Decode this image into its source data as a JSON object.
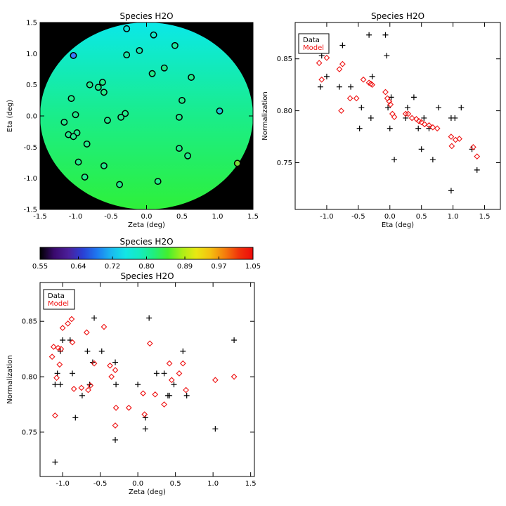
{
  "chart_data": [
    {
      "id": "map",
      "type": "scatter",
      "title": "Species H2O",
      "xlabel": "Zeta (deg)",
      "ylabel": "Eta (deg)",
      "xlim": [
        -1.5,
        1.5
      ],
      "ylim": [
        -1.5,
        1.5
      ],
      "xticks": [
        "-1.5",
        "-1.0",
        "-0.5",
        "0.0",
        "0.5",
        "1.0",
        "1.5"
      ],
      "yticks": [
        "-1.5",
        "-1.0",
        "-0.5",
        "0.0",
        "0.5",
        "1.0",
        "1.5"
      ],
      "background_color": "#000000",
      "field_radius": 1.5,
      "field_color_top": "#0be8e8",
      "field_color_bottom": "#2ef03a",
      "points": [
        [
          -1.03,
          0.97,
          "#3a7cff"
        ],
        [
          -0.28,
          1.4,
          "#14e5d9"
        ],
        [
          0.1,
          1.3,
          "#14e8c8"
        ],
        [
          -0.1,
          1.05,
          "#19e9b0"
        ],
        [
          0.4,
          1.13,
          "#1bea9e"
        ],
        [
          -0.28,
          0.98,
          "#1ce9a8"
        ],
        [
          0.08,
          0.68,
          "#22eb8a"
        ],
        [
          0.25,
          0.77,
          "#22eb8a"
        ],
        [
          0.63,
          0.62,
          "#22eb8a"
        ],
        [
          -0.62,
          0.54,
          "#22eb8a"
        ],
        [
          -0.68,
          0.46,
          "#22eb8a"
        ],
        [
          -0.8,
          0.5,
          "#22eb8a"
        ],
        [
          -0.6,
          0.38,
          "#22eb8a"
        ],
        [
          -1.06,
          0.28,
          "#22eb8a"
        ],
        [
          0.5,
          0.25,
          "#22eb8a"
        ],
        [
          1.03,
          0.08,
          "#1dc4d4"
        ],
        [
          -1.0,
          0.02,
          "#22eb8a"
        ],
        [
          -0.3,
          0.04,
          "#22eb8a"
        ],
        [
          -0.36,
          -0.02,
          "#22eb8a"
        ],
        [
          0.46,
          -0.02,
          "#22eb8a"
        ],
        [
          -0.55,
          -0.07,
          "#22eb8a"
        ],
        [
          -1.16,
          -0.1,
          "#22eb8a"
        ],
        [
          -0.98,
          -0.27,
          "#22eb8a"
        ],
        [
          -1.1,
          -0.3,
          "#22eb8a"
        ],
        [
          -1.03,
          -0.33,
          "#22eb8a"
        ],
        [
          -0.84,
          -0.45,
          "#22eb8a"
        ],
        [
          0.46,
          -0.52,
          "#22eb8a"
        ],
        [
          0.58,
          -0.64,
          "#22eb8a"
        ],
        [
          -0.96,
          -0.74,
          "#22eb8a"
        ],
        [
          -0.6,
          -0.8,
          "#22eb8a"
        ],
        [
          1.28,
          -0.76,
          "#7ad93a"
        ],
        [
          -0.87,
          -0.98,
          "#22eb8a"
        ],
        [
          0.16,
          -1.05,
          "#22eb8a"
        ],
        [
          -0.38,
          -1.1,
          "#22eb8a"
        ]
      ]
    },
    {
      "id": "colorbar",
      "type": "heatmap",
      "title": "Species H2O",
      "range": [
        0.55,
        1.05
      ],
      "tick_labels": [
        "0.55",
        "0.64",
        "0.72",
        "0.80",
        "0.89",
        "0.97",
        "1.05"
      ],
      "colors": [
        "#000000",
        "#3a0a6e",
        "#4b1f9a",
        "#2a3fd4",
        "#1e78f0",
        "#1ab8f0",
        "#12e6e6",
        "#14ecc0",
        "#20ee7e",
        "#44ee2e",
        "#aaee18",
        "#e8e812",
        "#f4c010",
        "#f47e0c",
        "#f0340a",
        "#ee0a0a"
      ]
    },
    {
      "id": "eta",
      "type": "scatter",
      "title": "Species H2O",
      "xlabel": "Eta (deg)",
      "ylabel": "Normalization",
      "xlim": [
        -1.5,
        1.75
      ],
      "ylim": [
        0.705,
        0.885
      ],
      "xticks": [
        "-1.0",
        "-0.5",
        "0.0",
        "0.5",
        "1.0",
        "1.5"
      ],
      "yticks": [
        "0.75",
        "0.80",
        "0.85"
      ],
      "legend": [
        "Data",
        "Model"
      ],
      "legend_position": "top-left",
      "series": [
        {
          "name": "Data",
          "marker": "plus",
          "color": "#000000",
          "points": [
            [
              -1.1,
              0.823
            ],
            [
              -1.08,
              0.853
            ],
            [
              -1.0,
              0.833
            ],
            [
              -0.8,
              0.823
            ],
            [
              -0.75,
              0.863
            ],
            [
              -0.62,
              0.823
            ],
            [
              -0.45,
              0.803
            ],
            [
              -0.48,
              0.783
            ],
            [
              -0.33,
              0.873
            ],
            [
              -0.3,
              0.793
            ],
            [
              -0.28,
              0.833
            ],
            [
              -0.07,
              0.873
            ],
            [
              -0.05,
              0.853
            ],
            [
              -0.03,
              0.803
            ],
            [
              0.02,
              0.813
            ],
            [
              0.0,
              0.783
            ],
            [
              0.07,
              0.753
            ],
            [
              0.28,
              0.803
            ],
            [
              0.25,
              0.793
            ],
            [
              0.38,
              0.813
            ],
            [
              0.45,
              0.783
            ],
            [
              0.5,
              0.763
            ],
            [
              0.54,
              0.793
            ],
            [
              0.62,
              0.783
            ],
            [
              0.68,
              0.753
            ],
            [
              0.77,
              0.803
            ],
            [
              0.97,
              0.793
            ],
            [
              1.03,
              0.793
            ],
            [
              1.13,
              0.803
            ],
            [
              0.97,
              0.723
            ],
            [
              1.3,
              0.763
            ],
            [
              1.38,
              0.743
            ]
          ]
        },
        {
          "name": "Model",
          "marker": "diamond",
          "color": "#ee1111",
          "points": [
            [
              -1.12,
              0.846
            ],
            [
              -1.08,
              0.83
            ],
            [
              -1.0,
              0.851
            ],
            [
              -0.8,
              0.84
            ],
            [
              -0.75,
              0.845
            ],
            [
              -0.77,
              0.8
            ],
            [
              -0.63,
              0.812
            ],
            [
              -0.53,
              0.812
            ],
            [
              -0.42,
              0.83
            ],
            [
              -0.33,
              0.827
            ],
            [
              -0.28,
              0.825
            ],
            [
              -0.3,
              0.826
            ],
            [
              -0.07,
              0.818
            ],
            [
              -0.04,
              0.812
            ],
            [
              -0.01,
              0.809
            ],
            [
              0.01,
              0.806
            ],
            [
              0.04,
              0.797
            ],
            [
              0.07,
              0.794
            ],
            [
              0.25,
              0.797
            ],
            [
              0.29,
              0.797
            ],
            [
              0.35,
              0.793
            ],
            [
              0.42,
              0.792
            ],
            [
              0.46,
              0.79
            ],
            [
              0.5,
              0.789
            ],
            [
              0.55,
              0.787
            ],
            [
              0.62,
              0.786
            ],
            [
              0.68,
              0.784
            ],
            [
              0.75,
              0.783
            ],
            [
              0.97,
              0.775
            ],
            [
              0.98,
              0.766
            ],
            [
              1.04,
              0.772
            ],
            [
              1.1,
              0.773
            ],
            [
              1.32,
              0.765
            ],
            [
              1.38,
              0.756
            ]
          ]
        }
      ]
    },
    {
      "id": "zeta",
      "type": "scatter",
      "title": "Species H2O",
      "xlabel": "Zeta (deg)",
      "ylabel": "Normalization",
      "xlim": [
        -1.3,
        1.55
      ],
      "ylim": [
        0.71,
        0.885
      ],
      "xticks": [
        "-1.0",
        "-0.5",
        "0.0",
        "0.5",
        "1.0",
        "1.5"
      ],
      "yticks": [
        "0.75",
        "0.80",
        "0.85"
      ],
      "legend": [
        "Data",
        "Model"
      ],
      "legend_position": "top-left",
      "series": [
        {
          "name": "Data",
          "marker": "plus",
          "color": "#000000",
          "points": [
            [
              -1.1,
              0.723
            ],
            [
              -1.1,
              0.793
            ],
            [
              -1.07,
              0.803
            ],
            [
              -1.03,
              0.823
            ],
            [
              -1.03,
              0.793
            ],
            [
              -1.0,
              0.833
            ],
            [
              -0.9,
              0.833
            ],
            [
              -0.87,
              0.803
            ],
            [
              -0.83,
              0.763
            ],
            [
              -0.74,
              0.783
            ],
            [
              -0.67,
              0.823
            ],
            [
              -0.64,
              0.793
            ],
            [
              -0.6,
              0.813
            ],
            [
              -0.58,
              0.853
            ],
            [
              -0.48,
              0.823
            ],
            [
              -0.3,
              0.813
            ],
            [
              -0.29,
              0.793
            ],
            [
              -0.3,
              0.743
            ],
            [
              0.0,
              0.793
            ],
            [
              0.1,
              0.753
            ],
            [
              0.1,
              0.763
            ],
            [
              0.15,
              0.853
            ],
            [
              0.25,
              0.803
            ],
            [
              0.35,
              0.803
            ],
            [
              0.4,
              0.783
            ],
            [
              0.42,
              0.783
            ],
            [
              0.48,
              0.793
            ],
            [
              0.6,
              0.823
            ],
            [
              0.65,
              0.783
            ],
            [
              1.03,
              0.753
            ],
            [
              1.28,
              0.833
            ]
          ]
        },
        {
          "name": "Model",
          "marker": "diamond",
          "color": "#ee1111",
          "points": [
            [
              -1.14,
              0.818
            ],
            [
              -1.12,
              0.827
            ],
            [
              -1.1,
              0.765
            ],
            [
              -1.08,
              0.799
            ],
            [
              -1.06,
              0.826
            ],
            [
              -1.04,
              0.811
            ],
            [
              -1.02,
              0.825
            ],
            [
              -1.0,
              0.844
            ],
            [
              -0.93,
              0.848
            ],
            [
              -0.88,
              0.852
            ],
            [
              -0.87,
              0.831
            ],
            [
              -0.85,
              0.789
            ],
            [
              -0.75,
              0.79
            ],
            [
              -0.68,
              0.84
            ],
            [
              -0.66,
              0.788
            ],
            [
              -0.63,
              0.792
            ],
            [
              -0.58,
              0.812
            ],
            [
              -0.45,
              0.845
            ],
            [
              -0.37,
              0.81
            ],
            [
              -0.35,
              0.8
            ],
            [
              -0.3,
              0.806
            ],
            [
              -0.29,
              0.772
            ],
            [
              -0.3,
              0.756
            ],
            [
              -0.12,
              0.772
            ],
            [
              0.07,
              0.785
            ],
            [
              0.09,
              0.766
            ],
            [
              0.16,
              0.83
            ],
            [
              0.23,
              0.784
            ],
            [
              0.35,
              0.775
            ],
            [
              0.42,
              0.812
            ],
            [
              0.45,
              0.797
            ],
            [
              0.55,
              0.803
            ],
            [
              0.6,
              0.812
            ],
            [
              0.64,
              0.788
            ],
            [
              1.03,
              0.797
            ],
            [
              1.28,
              0.8
            ]
          ]
        }
      ]
    }
  ]
}
